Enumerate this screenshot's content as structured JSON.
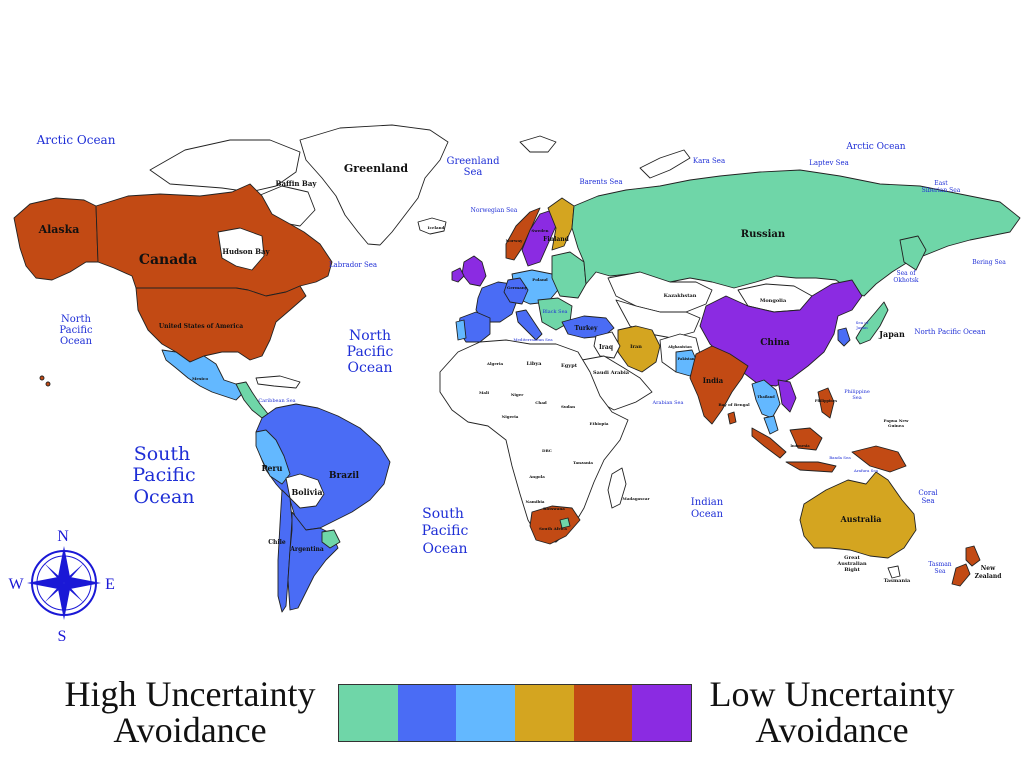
{
  "colors": {
    "c1": "#6fd6a8",
    "c2": "#4a6cf5",
    "c3": "#63b8ff",
    "c4": "#d4a520",
    "c5": "#c24a14",
    "c6": "#8b2be2",
    "unclassified": "#ffffff"
  },
  "legend": {
    "high_line1": "High Uncertainty",
    "high_line2": "Avoidance",
    "low_line1": "Low Uncertainty",
    "low_line2": "Avoidance",
    "swatches": [
      "#6fd6a8",
      "#4a6cf5",
      "#63b8ff",
      "#d4a520",
      "#c24a14",
      "#8b2be2"
    ]
  },
  "compass": {
    "n": "N",
    "s": "S",
    "e": "E",
    "w": "W"
  },
  "oceans": {
    "arctic_left": "Arctic Ocean",
    "arctic_right": "Arctic Ocean",
    "north_pacific_left": [
      "North",
      "Pacific",
      "Ocean"
    ],
    "north_pacific_center": [
      "North",
      "Pacific",
      "Ocean"
    ],
    "north_pacific_right": "North Pacific Ocean",
    "south_pacific_left": [
      "South",
      "Pacific",
      "Ocean"
    ],
    "south_pacific_center": [
      "South",
      "Pacific",
      "Ocean"
    ],
    "indian": [
      "Indian",
      "Ocean"
    ],
    "greenland_sea": [
      "Greenland",
      "Sea"
    ],
    "barents_sea": "Barents Sea",
    "kara_sea": "Kara Sea",
    "laptev_sea": "Laptev Sea",
    "east_siberian_sea": [
      "East",
      "Siberian Sea"
    ],
    "bering_sea": "Bering Sea",
    "sea_of_okhotsk": [
      "Sea of",
      "Okhotsk"
    ],
    "norwegian_sea": "Norwegian Sea",
    "labrador_sea": "Labrador Sea",
    "baffin_bay": "Baffin Bay",
    "hudson_bay": "Hudson Bay",
    "coral_sea": [
      "Coral",
      "Sea"
    ],
    "tasman_sea": [
      "Tasman",
      "Sea"
    ],
    "philippine_sea": [
      "Philippine",
      "Sea"
    ],
    "arabian_sea": "Arabian Sea",
    "bay_of_bengal": "Bay of Bengal",
    "caribbean_sea": "Caribbean Sea",
    "black_sea": "Black Sea",
    "mediterranean_sea": "Mediterranean Sea",
    "sea_of_japan": [
      "Sea of",
      "Japan"
    ],
    "banda_sea": "Banda Sea",
    "arafura_sea": "Arafura Sea"
  },
  "countries": {
    "greenland": "Greenland",
    "iceland": "Iceland",
    "alaska": "Alaska",
    "canada": "Canada",
    "usa": "United States of America",
    "mexico": "Mexico",
    "brazil": "Brazil",
    "peru": "Peru",
    "bolivia": "Bolivia",
    "chile": "Chile",
    "argentina": "Argentina",
    "russian": "Russian",
    "kazakhstan": "Kazakhstan",
    "mongolia": "Mongolia",
    "china": "China",
    "japan": "Japan",
    "india": "India",
    "iran": "Iran",
    "iraq": "Iraq",
    "saudi_arabia": "Saudi Arabia",
    "turkey": "Turkey",
    "egypt": "Egypt",
    "libya": "Libya",
    "algeria": "Algeria",
    "mali": "Mali",
    "niger": "Niger",
    "chad": "Chad",
    "sudan": "Sudan",
    "ethiopia": "Ethiopia",
    "nigeria": "Nigeria",
    "drc": "DRC",
    "tanzania": "Tanzania",
    "angola": "Angola",
    "namibia": "Namibia",
    "botswana": "Botswana",
    "madagascar": "Madagascar",
    "south_africa": "South Africa",
    "finland": "Finland",
    "norway": "Norway",
    "sweden": "Sweden",
    "germany": "Germany",
    "poland": "Poland",
    "australia": "Australia",
    "great_australian_bight": [
      "Great",
      "Australian",
      "Bight"
    ],
    "tasmania": "Tasmania",
    "new_zealand": [
      "New",
      "Zealand"
    ],
    "papua_new_guinea": [
      "Papua New",
      "Guinea"
    ],
    "afghanistan": "Afghanistan",
    "pakistan": "Pakistan",
    "thailand": "Thailand",
    "indonesia": "Indonesia",
    "philippines": "Philippines"
  }
}
